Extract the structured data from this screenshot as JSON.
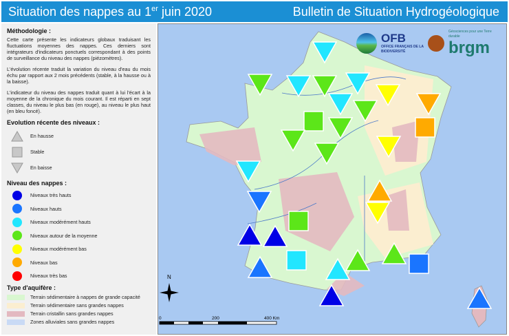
{
  "header": {
    "title_pre": "Situation des nappes au 1",
    "title_sup": "er",
    "title_post": " juin 2020",
    "right": "Bulletin de Situation Hydrogéologique"
  },
  "left": {
    "methodo_title": "Méthodologie :",
    "p1": "Cette carte présente les indicateurs globaux traduisant les fluctuations moyennes des nappes. Ces derniers sont intégrateurs d'indicateurs ponctuels correspondant à des points de surveillance du niveau des nappes (piézomètres).",
    "p2": "L'évolution récente traduit la variation du niveau d'eau du mois échu par rapport aux 2 mois précédents (stable, à la hausse ou à la baisse).",
    "p3": "L'indicateur du niveau des nappes traduit quant à lui l'écart à la moyenne de la chronique du mois courant. Il est réparti en sept classes, du niveau le plus bas (en rouge), au niveau le plus haut (en bleu foncé).",
    "evol_title": "Evolution récente des niveaux :",
    "evol": [
      {
        "icon": "triangle-up-icon",
        "label": "En hausse"
      },
      {
        "icon": "square-icon",
        "label": "Stable"
      },
      {
        "icon": "triangle-down-icon",
        "label": "En baisse"
      }
    ],
    "niveau_title": "Niveau des nappes :",
    "niveaux": [
      {
        "label": "Niveaux très hauts",
        "color": "#0000e6"
      },
      {
        "label": "Niveaux hauts",
        "color": "#1a75ff"
      },
      {
        "label": "Niveaux modérément hauts",
        "color": "#22e6ff"
      },
      {
        "label": "Niveaux autour de la moyenne",
        "color": "#5ce619"
      },
      {
        "label": "Niveaux modérément bas",
        "color": "#ffff00"
      },
      {
        "label": "Niveaux bas",
        "color": "#ffaa00"
      },
      {
        "label": "Niveaux très bas",
        "color": "#ff0000"
      }
    ],
    "aquifere_title": "Type d'aquifère :",
    "aquiferes": [
      {
        "label": "Terrain sédimentaire à nappes de grande capacité",
        "color": "#d9f7d0"
      },
      {
        "label": "Terrain sédimentaire sans grandes nappes",
        "color": "#fbeed0"
      },
      {
        "label": "Terrain cristallin sans grandes nappes",
        "color": "#e3b9c0"
      },
      {
        "label": "Zones alluviales sans grandes nappes",
        "color": "#c9daf5"
      }
    ]
  },
  "map": {
    "logos": {
      "ofb": "OFB",
      "ofb_sub": "OFFICE FRANÇAIS DE LA BIODIVERSITÉ",
      "brgm": "brgm",
      "brgm_tag": "Géosciences pour une Terre durable"
    },
    "north": "N",
    "scale": [
      "0",
      "200",
      "400 Km"
    ],
    "markers": [
      [
        "down",
        "modh"
      ],
      [
        "down",
        "avg"
      ],
      [
        "down",
        "modh"
      ],
      [
        "down",
        "avg"
      ],
      [
        "down",
        "modh"
      ],
      [
        "down",
        "modb"
      ],
      [
        "down",
        "bas"
      ],
      [
        "down",
        "modh"
      ],
      [
        "down",
        "avg"
      ],
      [
        "stable",
        "avg"
      ],
      [
        "down",
        "avg"
      ],
      [
        "stable",
        "bas"
      ],
      [
        "down",
        "avg"
      ],
      [
        "down",
        "avg"
      ],
      [
        "down",
        "modb"
      ],
      [
        "down",
        "modh"
      ],
      [
        "up",
        "bas"
      ],
      [
        "down",
        "modb"
      ],
      [
        "down",
        "haut"
      ],
      [
        "stable",
        "avg"
      ],
      [
        "up",
        "tres_haut"
      ],
      [
        "up",
        "tres_haut"
      ],
      [
        "up",
        "avg"
      ],
      [
        "up",
        "avg"
      ],
      [
        "stable",
        "modh"
      ],
      [
        "stable",
        "haut"
      ],
      [
        "up",
        "haut"
      ],
      [
        "up",
        "modh"
      ],
      [
        "up",
        "tres_haut"
      ],
      [
        "up",
        "haut"
      ]
    ],
    "level_colors": {
      "tres_haut": "#0000e6",
      "haut": "#1a75ff",
      "modh": "#22e6ff",
      "avg": "#5ce619",
      "modb": "#ffff00",
      "bas": "#ffaa00",
      "tres_bas": "#ff0000"
    }
  }
}
